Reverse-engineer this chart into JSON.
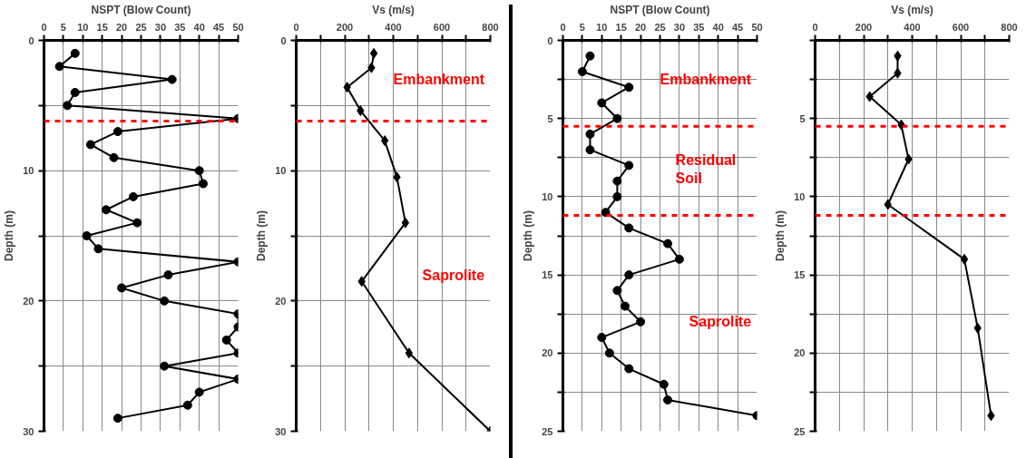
{
  "chart_data": [
    {
      "type": "line",
      "xlabel": "NSPT (Blow Count)",
      "ylabel": "Depth (m)",
      "marker": "circle",
      "line_style": "solid",
      "grid": true,
      "xlim": [
        0,
        50
      ],
      "xticks": [
        0,
        5,
        10,
        15,
        20,
        25,
        30,
        35,
        40,
        45,
        50
      ],
      "ylim": [
        30,
        0
      ],
      "yticks": [
        0,
        {
          "value": 5,
          "label": null
        },
        10,
        {
          "value": 15,
          "label": null
        },
        20,
        {
          "value": 25,
          "label": null
        },
        30
      ],
      "series": [
        {
          "color": "#000000",
          "x": [
            8,
            4,
            33,
            8,
            6,
            50,
            19,
            12,
            18,
            40,
            41,
            23,
            16,
            24,
            11,
            14,
            50,
            32,
            20,
            31,
            50,
            50,
            47,
            50,
            31,
            50,
            40,
            37,
            19
          ],
          "values": [
            1,
            2,
            3,
            4,
            5,
            6,
            7,
            8,
            9,
            10,
            11,
            12,
            13,
            14,
            15,
            16,
            17,
            18,
            19,
            20,
            21,
            22,
            23,
            24,
            25,
            26,
            27,
            28,
            29
          ]
        }
      ],
      "ref_lines": [
        {
          "axis": "y",
          "value": 6.2,
          "color": "#ff0000",
          "line_style": "dashed"
        }
      ]
    },
    {
      "type": "line",
      "xlabel": "Vs (m/s)",
      "ylabel": "Depth (m)",
      "marker": "diamond",
      "line_style": "solid",
      "grid": true,
      "xlim": [
        0,
        800
      ],
      "xticks": [
        0,
        {
          "value": 100,
          "label": null
        },
        200,
        {
          "value": 300,
          "label": null
        },
        400,
        {
          "value": 500,
          "label": null
        },
        600,
        {
          "value": 700,
          "label": null
        },
        800
      ],
      "ylim": [
        30,
        0
      ],
      "yticks": [
        0,
        {
          "value": 5,
          "label": null
        },
        10,
        {
          "value": 15,
          "label": null
        },
        20,
        {
          "value": 25,
          "label": null
        },
        30
      ],
      "series": [
        {
          "color": "#000000",
          "x": [
            320,
            310,
            210,
            265,
            365,
            415,
            450,
            270,
            465,
            800
          ],
          "values": [
            1,
            2.1,
            3.6,
            5.4,
            7.7,
            10.5,
            14,
            18.5,
            24,
            30
          ]
        }
      ],
      "ref_lines": [
        {
          "axis": "y",
          "value": 6.2,
          "color": "#ff0000",
          "line_style": "dashed"
        }
      ],
      "annotations": [
        "Embankment",
        "Saprolite"
      ]
    },
    {
      "type": "line",
      "xlabel": "NSPT (Blow Count)",
      "ylabel": "Depth (m)",
      "marker": "circle",
      "line_style": "solid",
      "grid": true,
      "xlim": [
        0,
        50
      ],
      "xticks": [
        0,
        5,
        10,
        15,
        20,
        25,
        30,
        35,
        40,
        45,
        50
      ],
      "ylim": [
        25,
        0
      ],
      "yticks": [
        0,
        {
          "value": 2.5,
          "label": null
        },
        5,
        {
          "value": 7.5,
          "label": null
        },
        10,
        {
          "value": 12.5,
          "label": null
        },
        15,
        {
          "value": 17.5,
          "label": null
        },
        20,
        {
          "value": 22.5,
          "label": null
        },
        25
      ],
      "series": [
        {
          "color": "#000000",
          "x": [
            7,
            5,
            17,
            10,
            14,
            7,
            7,
            17,
            14,
            14,
            11,
            17,
            27,
            30,
            17,
            14,
            16,
            20,
            10,
            12,
            17,
            26,
            27,
            50
          ],
          "values": [
            1,
            2,
            3,
            4,
            5,
            6,
            7,
            8,
            9,
            10,
            11,
            12,
            13,
            14,
            15,
            16,
            17,
            18,
            19,
            20,
            21,
            22,
            23,
            24
          ]
        }
      ],
      "ref_lines": [
        {
          "axis": "y",
          "value": 5.5,
          "color": "#ff0000",
          "line_style": "dashed"
        },
        {
          "axis": "y",
          "value": 11.2,
          "color": "#ff0000",
          "line_style": "dashed"
        }
      ],
      "annotations": [
        "Embankment",
        "Residual\nSoil",
        "Saprolite"
      ]
    },
    {
      "type": "line",
      "xlabel": "Vs (m/s)",
      "ylabel": "Depth (m)",
      "marker": "diamond",
      "line_style": "solid",
      "grid": true,
      "xlim": [
        0,
        800
      ],
      "xticks": [
        0,
        {
          "value": 100,
          "label": null
        },
        200,
        {
          "value": 300,
          "label": null
        },
        400,
        {
          "value": 500,
          "label": null
        },
        600,
        {
          "value": 700,
          "label": null
        },
        800
      ],
      "ylim": [
        25,
        0
      ],
      "yticks": [
        {
          "value": 0,
          "label": null
        },
        {
          "value": 2.5,
          "label": null
        },
        5,
        {
          "value": 7.5,
          "label": null
        },
        10,
        {
          "value": 12.5,
          "label": null
        },
        15,
        {
          "value": 17.5,
          "label": null
        },
        20,
        {
          "value": 22.5,
          "label": null
        },
        25
      ],
      "series": [
        {
          "color": "#000000",
          "x": [
            340,
            340,
            225,
            355,
            385,
            300,
            615,
            670,
            725
          ],
          "values": [
            1,
            2.1,
            3.6,
            5.4,
            7.6,
            10.5,
            14,
            18.4,
            24
          ]
        }
      ],
      "ref_lines": [
        {
          "axis": "y",
          "value": 5.5,
          "color": "#ff0000",
          "line_style": "dashed"
        },
        {
          "axis": "y",
          "value": 11.2,
          "color": "#ff0000",
          "line_style": "dashed"
        }
      ]
    }
  ]
}
